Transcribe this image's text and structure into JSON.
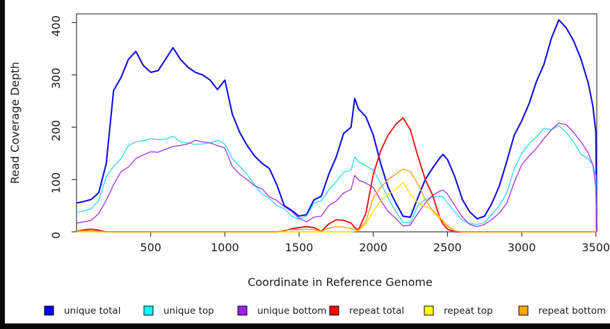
{
  "colors": {
    "background": "#ffffff",
    "frame": "#0a0a0a",
    "axis": "#333333",
    "text": "#1a1a1a"
  },
  "chart_data": {
    "type": "line",
    "title": "",
    "xlabel": "Coordinate in Reference Genome",
    "ylabel": "Read Coverage Depth",
    "xlim": [
      0,
      3507
    ],
    "ylim": [
      0,
      416
    ],
    "xticks": [
      500,
      1000,
      1500,
      2000,
      2500,
      3000,
      3500
    ],
    "yticks": [
      0,
      100,
      200,
      300,
      400
    ],
    "grid": false,
    "legend_position": "bottom",
    "x": [
      0,
      50,
      100,
      150,
      200,
      250,
      300,
      350,
      400,
      450,
      500,
      550,
      600,
      650,
      700,
      750,
      800,
      850,
      900,
      950,
      1000,
      1050,
      1100,
      1150,
      1200,
      1250,
      1300,
      1350,
      1400,
      1450,
      1500,
      1550,
      1600,
      1650,
      1700,
      1750,
      1800,
      1850,
      1875,
      1900,
      1950,
      2000,
      2050,
      2100,
      2150,
      2200,
      2250,
      2300,
      2350,
      2400,
      2450,
      2470,
      2500,
      2550,
      2600,
      2650,
      2700,
      2750,
      2800,
      2850,
      2900,
      2950,
      3000,
      3050,
      3100,
      3150,
      3200,
      3250,
      3300,
      3350,
      3400,
      3450,
      3480,
      3500,
      3505
    ],
    "series": [
      {
        "name": "unique total",
        "color": "#0d0de6",
        "swatch": "#0000ff",
        "width": 2.1,
        "values": [
          55,
          58,
          62,
          75,
          130,
          270,
          295,
          330,
          345,
          318,
          305,
          308,
          330,
          352,
          330,
          315,
          305,
          300,
          290,
          272,
          290,
          225,
          190,
          165,
          145,
          131,
          121,
          90,
          50,
          41,
          30,
          33,
          61,
          68,
          110,
          143,
          188,
          200,
          255,
          235,
          220,
          185,
          130,
          85,
          56,
          30,
          28,
          65,
          100,
          122,
          142,
          148,
          138,
          105,
          62,
          38,
          25,
          30,
          55,
          88,
          135,
          185,
          212,
          245,
          288,
          320,
          370,
          405,
          390,
          365,
          330,
          283,
          240,
          190,
          0
        ]
      },
      {
        "name": "unique top",
        "color": "#22dcee",
        "swatch": "#00ffff",
        "width": 1.3,
        "values": [
          37,
          40,
          44,
          60,
          105,
          125,
          140,
          165,
          172,
          174,
          178,
          176,
          177,
          183,
          172,
          170,
          167,
          168,
          170,
          175,
          168,
          140,
          125,
          110,
          90,
          72,
          64,
          50,
          44,
          30,
          24,
          30,
          55,
          59,
          80,
          96,
          114,
          118,
          143,
          134,
          126,
          118,
          93,
          65,
          40,
          18,
          17,
          50,
          62,
          66,
          68,
          67,
          55,
          38,
          22,
          16,
          14,
          18,
          34,
          50,
          75,
          120,
          150,
          168,
          182,
          198,
          195,
          203,
          190,
          172,
          148,
          140,
          128,
          105,
          0
        ]
      },
      {
        "name": "unique bottom",
        "color": "#a42ce8",
        "swatch": "#a020f0",
        "width": 1.3,
        "values": [
          17,
          19,
          22,
          35,
          60,
          90,
          115,
          124,
          140,
          147,
          153,
          152,
          158,
          163,
          165,
          168,
          175,
          172,
          170,
          165,
          160,
          125,
          110,
          100,
          88,
          82,
          67,
          60,
          48,
          39,
          26,
          19,
          28,
          30,
          50,
          59,
          74,
          81,
          108,
          99,
          93,
          85,
          60,
          39,
          26,
          11,
          13,
          35,
          55,
          70,
          78,
          80,
          72,
          50,
          28,
          14,
          10,
          14,
          24,
          36,
          55,
          95,
          128,
          145,
          160,
          178,
          195,
          208,
          205,
          190,
          172,
          150,
          128,
          85,
          0
        ]
      },
      {
        "name": "repeat total",
        "color": "#ee1111",
        "swatch": "#ff0000",
        "width": 1.9,
        "values": [
          1,
          4,
          5,
          3,
          0,
          0,
          0,
          0,
          0,
          0,
          0,
          0,
          0,
          0,
          0,
          0,
          0,
          0,
          0,
          0,
          0,
          0,
          0,
          0,
          0,
          0,
          0,
          0,
          2,
          6,
          8,
          10,
          8,
          1,
          15,
          23,
          22,
          17,
          8,
          4,
          35,
          110,
          155,
          185,
          205,
          218,
          195,
          145,
          100,
          70,
          25,
          15,
          5,
          0,
          0,
          0,
          0,
          0,
          0,
          0,
          0,
          0,
          0,
          0,
          0,
          0,
          0,
          0,
          0,
          0,
          0,
          0,
          0,
          0,
          0
        ]
      },
      {
        "name": "repeat top",
        "color": "#ffe400",
        "swatch": "#ffff00",
        "width": 1.4,
        "values": [
          0,
          0,
          0,
          0,
          0,
          0,
          0,
          0,
          0,
          0,
          0,
          0,
          0,
          0,
          0,
          0,
          0,
          0,
          0,
          0,
          0,
          0,
          0,
          0,
          0,
          0,
          0,
          0,
          0,
          0,
          0,
          0,
          0,
          0,
          0,
          0,
          0,
          0,
          1,
          2,
          15,
          40,
          60,
          72,
          80,
          95,
          72,
          55,
          48,
          42,
          28,
          22,
          12,
          2,
          0,
          0,
          0,
          0,
          0,
          0,
          0,
          0,
          0,
          0,
          0,
          0,
          0,
          0,
          0,
          0,
          0,
          0,
          0,
          0,
          0
        ]
      },
      {
        "name": "repeat bottom",
        "color": "#ff9d0a",
        "swatch": "#ffa500",
        "width": 1.4,
        "values": [
          1,
          2,
          2,
          1,
          0,
          0,
          0,
          0,
          0,
          0,
          0,
          0,
          0,
          0,
          0,
          0,
          0,
          0,
          0,
          0,
          0,
          0,
          0,
          0,
          0,
          0,
          0,
          0,
          3,
          4,
          4,
          5,
          4,
          1,
          7,
          10,
          9,
          6,
          4,
          3,
          20,
          65,
          85,
          100,
          110,
          120,
          115,
          92,
          62,
          40,
          25,
          20,
          10,
          2,
          0,
          0,
          0,
          0,
          0,
          0,
          0,
          0,
          0,
          0,
          0,
          0,
          0,
          0,
          0,
          0,
          0,
          0,
          0,
          0,
          0
        ]
      }
    ]
  }
}
